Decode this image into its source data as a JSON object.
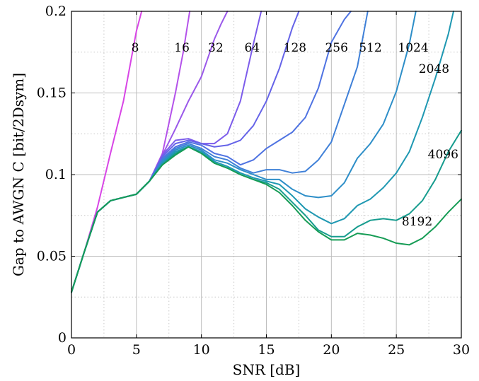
{
  "chart_data": {
    "type": "line",
    "title": "",
    "xlabel": "SNR [dB]",
    "ylabel": "Gap to AWGN C [bit/2Dsym]",
    "xlim": [
      0,
      30
    ],
    "ylim": [
      0,
      0.2
    ],
    "xticks": [
      0,
      5,
      10,
      15,
      20,
      25,
      30
    ],
    "yticks": [
      0,
      0.05,
      0.1,
      0.15,
      0.2
    ],
    "xtick_labels": [
      "0",
      "5",
      "10",
      "15",
      "20",
      "25",
      "30"
    ],
    "ytick_labels": [
      "0",
      "0.05",
      "0.1",
      "0.15",
      "0.2"
    ],
    "grid": true,
    "legend": "none",
    "series": [
      {
        "name": "8",
        "color": "#d845e6",
        "label_x": 4.9,
        "label_y": 0.178,
        "x": [
          0,
          1,
          2,
          3,
          4,
          5,
          5.4
        ],
        "y": [
          0.028,
          0.053,
          0.08,
          0.113,
          0.145,
          0.188,
          0.2
        ]
      },
      {
        "name": "16",
        "color": "#b452ea",
        "label_x": 8.5,
        "label_y": 0.178,
        "x": [
          0,
          1,
          2,
          3,
          4,
          5,
          6,
          7,
          8,
          8.6,
          9.1
        ],
        "y": [
          0.028,
          0.053,
          0.077,
          0.084,
          0.086,
          0.088,
          0.096,
          0.113,
          0.15,
          0.175,
          0.2
        ]
      },
      {
        "name": "32",
        "color": "#9a58ea",
        "label_x": 11.1,
        "label_y": 0.178,
        "x": [
          0,
          1,
          2,
          3,
          4,
          5,
          6,
          7,
          8,
          9,
          10,
          11,
          11.5,
          12
        ],
        "y": [
          0.028,
          0.053,
          0.077,
          0.084,
          0.086,
          0.088,
          0.096,
          0.112,
          0.128,
          0.145,
          0.16,
          0.183,
          0.192,
          0.2
        ]
      },
      {
        "name": "64",
        "color": "#7c5ceb",
        "label_x": 13.9,
        "label_y": 0.178,
        "x": [
          0,
          1,
          2,
          3,
          4,
          5,
          6,
          7,
          8,
          9,
          10,
          11,
          12,
          13,
          14,
          14.6
        ],
        "y": [
          0.028,
          0.053,
          0.077,
          0.084,
          0.086,
          0.088,
          0.096,
          0.112,
          0.121,
          0.122,
          0.119,
          0.119,
          0.125,
          0.145,
          0.18,
          0.2
        ]
      },
      {
        "name": "128",
        "color": "#6563e8",
        "label_x": 17.2,
        "label_y": 0.178,
        "x": [
          0,
          1,
          2,
          3,
          4,
          5,
          6,
          7,
          8,
          9,
          10,
          11,
          12,
          13,
          14,
          15,
          16,
          17,
          17.5
        ],
        "y": [
          0.028,
          0.053,
          0.077,
          0.084,
          0.086,
          0.088,
          0.096,
          0.111,
          0.119,
          0.121,
          0.119,
          0.117,
          0.118,
          0.121,
          0.13,
          0.145,
          0.165,
          0.19,
          0.2
        ]
      },
      {
        "name": "256",
        "color": "#4f73e2",
        "label_x": 20.4,
        "label_y": 0.178,
        "x": [
          0,
          1,
          2,
          3,
          4,
          5,
          6,
          7,
          8,
          9,
          10,
          11,
          12,
          13,
          14,
          15,
          16,
          17,
          18,
          19,
          20,
          21,
          21.5
        ],
        "y": [
          0.028,
          0.053,
          0.077,
          0.084,
          0.086,
          0.088,
          0.096,
          0.11,
          0.117,
          0.12,
          0.118,
          0.113,
          0.111,
          0.106,
          0.109,
          0.116,
          0.121,
          0.126,
          0.135,
          0.153,
          0.181,
          0.195,
          0.2
        ]
      },
      {
        "name": "512",
        "color": "#3f80d8",
        "label_x": 23.0,
        "label_y": 0.178,
        "x": [
          0,
          1,
          2,
          3,
          4,
          5,
          6,
          7,
          8,
          9,
          10,
          11,
          12,
          13,
          14,
          15,
          16,
          17,
          18,
          19,
          20,
          21,
          22,
          22.8
        ],
        "y": [
          0.028,
          0.053,
          0.077,
          0.084,
          0.086,
          0.088,
          0.096,
          0.109,
          0.116,
          0.119,
          0.116,
          0.111,
          0.109,
          0.104,
          0.101,
          0.103,
          0.103,
          0.101,
          0.102,
          0.109,
          0.12,
          0.143,
          0.166,
          0.2
        ]
      },
      {
        "name": "1024",
        "color": "#2d8ec8",
        "label_x": 26.3,
        "label_y": 0.178,
        "x": [
          0,
          1,
          2,
          3,
          4,
          5,
          6,
          7,
          8,
          9,
          10,
          11,
          12,
          13,
          14,
          15,
          16,
          17,
          18,
          19,
          20,
          21,
          22,
          23,
          24,
          25,
          26,
          26.5
        ],
        "y": [
          0.028,
          0.053,
          0.077,
          0.084,
          0.086,
          0.088,
          0.096,
          0.108,
          0.115,
          0.118,
          0.115,
          0.109,
          0.107,
          0.103,
          0.1,
          0.097,
          0.097,
          0.091,
          0.087,
          0.086,
          0.087,
          0.095,
          0.11,
          0.119,
          0.131,
          0.151,
          0.18,
          0.2
        ]
      },
      {
        "name": "2048",
        "color": "#1f98b2",
        "label_x": 27.9,
        "label_y": 0.165,
        "x": [
          0,
          1,
          2,
          3,
          4,
          5,
          6,
          7,
          8,
          9,
          10,
          11,
          12,
          13,
          14,
          15,
          16,
          17,
          18,
          19,
          20,
          21,
          22,
          23,
          24,
          25,
          26,
          27,
          28,
          29,
          29.4
        ],
        "y": [
          0.028,
          0.053,
          0.077,
          0.084,
          0.086,
          0.088,
          0.096,
          0.107,
          0.114,
          0.117,
          0.114,
          0.108,
          0.105,
          0.101,
          0.098,
          0.096,
          0.094,
          0.087,
          0.079,
          0.074,
          0.07,
          0.073,
          0.081,
          0.085,
          0.092,
          0.101,
          0.114,
          0.135,
          0.159,
          0.186,
          0.2
        ]
      },
      {
        "name": "4096",
        "color": "#169c8e",
        "label_x": 28.6,
        "label_y": 0.1125,
        "x": [
          0,
          1,
          2,
          3,
          4,
          5,
          6,
          7,
          8,
          9,
          10,
          11,
          12,
          13,
          14,
          15,
          16,
          17,
          18,
          19,
          20,
          21,
          22,
          23,
          24,
          25,
          26,
          27,
          28,
          29,
          30
        ],
        "y": [
          0.028,
          0.053,
          0.077,
          0.084,
          0.086,
          0.088,
          0.096,
          0.106,
          0.113,
          0.117,
          0.113,
          0.107,
          0.104,
          0.1,
          0.097,
          0.095,
          0.091,
          0.083,
          0.075,
          0.066,
          0.062,
          0.062,
          0.068,
          0.072,
          0.073,
          0.072,
          0.076,
          0.084,
          0.097,
          0.114,
          0.127
        ]
      },
      {
        "name": "8192",
        "color": "#169c55",
        "label_x": 26.6,
        "label_y": 0.0715,
        "x": [
          0,
          1,
          2,
          3,
          4,
          5,
          6,
          7,
          8,
          9,
          10,
          11,
          12,
          13,
          14,
          15,
          16,
          17,
          18,
          19,
          20,
          21,
          22,
          23,
          24,
          25,
          26,
          27,
          28,
          29,
          30
        ],
        "y": [
          0.028,
          0.053,
          0.077,
          0.084,
          0.086,
          0.088,
          0.096,
          0.106,
          0.112,
          0.117,
          0.113,
          0.107,
          0.104,
          0.1,
          0.097,
          0.094,
          0.089,
          0.081,
          0.072,
          0.065,
          0.06,
          0.06,
          0.064,
          0.063,
          0.061,
          0.058,
          0.057,
          0.061,
          0.068,
          0.077,
          0.085
        ]
      }
    ]
  }
}
